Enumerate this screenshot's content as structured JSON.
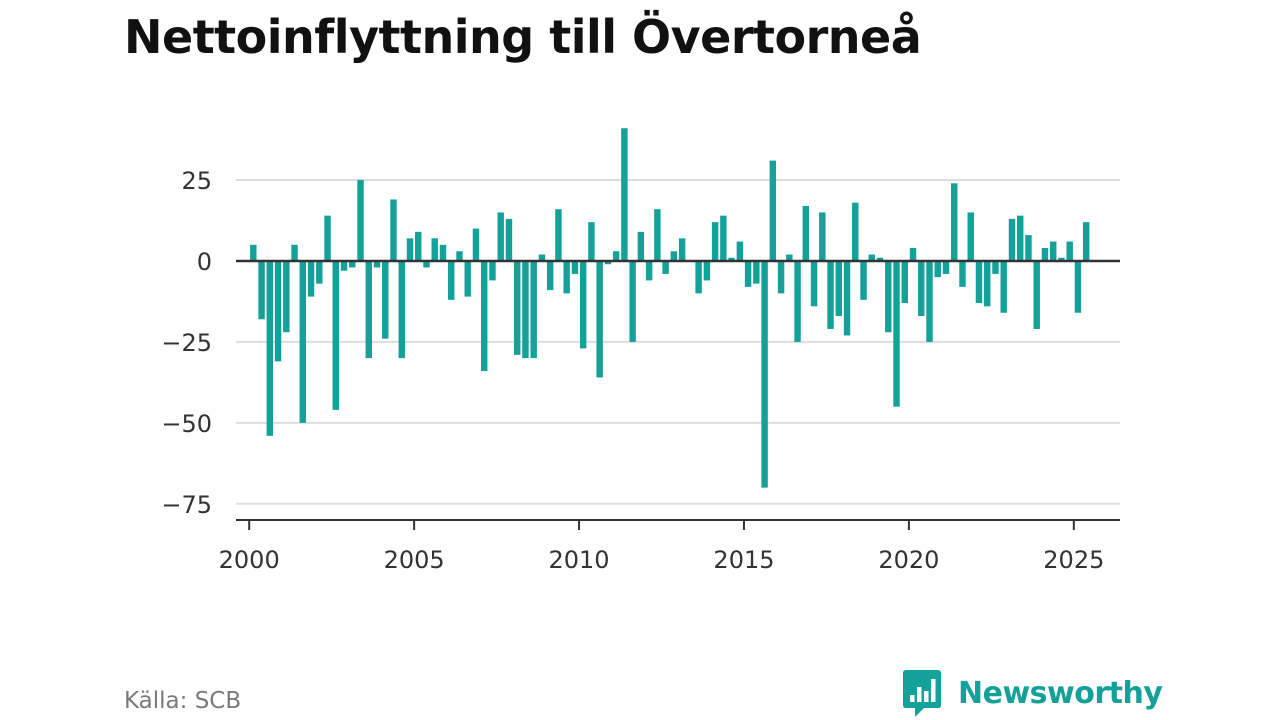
{
  "title": "Nettoinflyttning till Övertorneå",
  "source": "Källa: SCB",
  "brand": {
    "name": "Newsworthy",
    "icon": "newsworthy-logo-icon",
    "color": "#13a19a"
  },
  "colors": {
    "bar": "#13a19a",
    "gridline": "#dddddd",
    "zero_line": "#333333",
    "axis": "#333333"
  },
  "chart_data": {
    "type": "bar",
    "title": "Nettoinflyttning till Övertorneå",
    "xlabel": "",
    "ylabel": "",
    "grid": true,
    "legend": "none",
    "xlim": [
      1999.6,
      2026.4
    ],
    "ylim": [
      -80,
      42
    ],
    "xticks": [
      2000,
      2005,
      2010,
      2015,
      2020,
      2025
    ],
    "xtick_labels": [
      "2000",
      "2005",
      "2010",
      "2015",
      "2020",
      "2025"
    ],
    "yticks": [
      -75,
      -50,
      -25,
      0,
      25
    ],
    "ytick_labels": [
      "−75",
      "−50",
      "−25",
      "0",
      "25"
    ],
    "x_start": 2000.125,
    "x_step": 0.25,
    "values": [
      5,
      -18,
      -54,
      -31,
      -22,
      5,
      -50,
      -11,
      -7,
      14,
      -46,
      -3,
      -2,
      25,
      -30,
      -2,
      -24,
      19,
      -30,
      7,
      9,
      -2,
      7,
      5,
      -12,
      3,
      -11,
      10,
      -34,
      -6,
      15,
      13,
      -29,
      -30,
      -30,
      2,
      -9,
      16,
      -10,
      -4,
      -27,
      12,
      -36,
      -1,
      3,
      41,
      -25,
      9,
      -6,
      16,
      -4,
      3,
      7,
      0,
      -10,
      -6,
      12,
      14,
      1,
      6,
      -8,
      -7,
      -70,
      31,
      -10,
      2,
      -25,
      17,
      -14,
      15,
      -21,
      -17,
      -23,
      18,
      -12,
      2,
      1,
      -22,
      -45,
      -13,
      4,
      -17,
      -25,
      -5,
      -4,
      24,
      -8,
      15,
      -13,
      -14,
      -4,
      -16,
      13,
      14,
      8,
      -21,
      4,
      6,
      1,
      6,
      -16,
      12
    ]
  }
}
